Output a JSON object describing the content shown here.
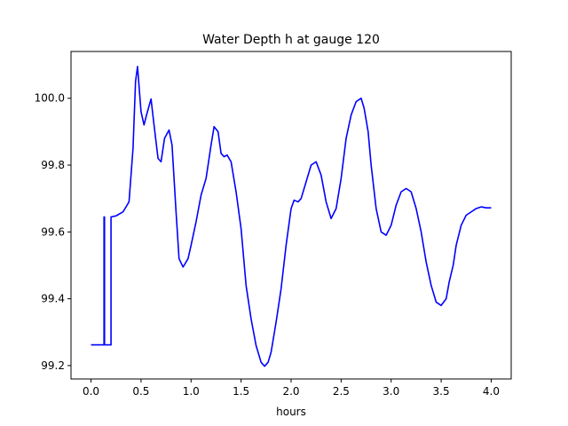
{
  "chart_data": {
    "type": "line",
    "title": "Water Depth h at gauge 120",
    "xlabel": "hours",
    "ylabel": "",
    "xlim": [
      -0.2,
      4.2
    ],
    "ylim": [
      99.16,
      100.14
    ],
    "xticks": [
      0.0,
      0.5,
      1.0,
      1.5,
      2.0,
      2.5,
      3.0,
      3.5,
      4.0
    ],
    "xtick_labels": [
      "0.0",
      "0.5",
      "1.0",
      "1.5",
      "2.0",
      "2.5",
      "3.0",
      "3.5",
      "4.0"
    ],
    "yticks": [
      99.2,
      99.4,
      99.6,
      99.8,
      100.0
    ],
    "ytick_labels": [
      "99.2",
      "99.4",
      "99.6",
      "99.8",
      "100.0"
    ],
    "grid": false,
    "legend": "none",
    "series": [
      {
        "color": "#0000ff",
        "x": [
          0.0,
          0.13,
          0.13,
          0.135,
          0.135,
          0.2,
          0.2,
          0.25,
          0.32,
          0.38,
          0.42,
          0.445,
          0.465,
          0.5,
          0.53,
          0.555,
          0.6,
          0.63,
          0.67,
          0.7,
          0.735,
          0.78,
          0.81,
          0.85,
          0.88,
          0.92,
          0.97,
          1.0,
          1.05,
          1.1,
          1.15,
          1.2,
          1.23,
          1.27,
          1.3,
          1.33,
          1.36,
          1.4,
          1.45,
          1.5,
          1.55,
          1.6,
          1.65,
          1.7,
          1.735,
          1.77,
          1.8,
          1.85,
          1.9,
          1.95,
          2.0,
          2.03,
          2.07,
          2.1,
          2.15,
          2.2,
          2.25,
          2.3,
          2.35,
          2.4,
          2.45,
          2.5,
          2.55,
          2.6,
          2.65,
          2.7,
          2.73,
          2.77,
          2.8,
          2.85,
          2.9,
          2.95,
          3.0,
          3.05,
          3.1,
          3.15,
          3.2,
          3.25,
          3.3,
          3.35,
          3.4,
          3.45,
          3.5,
          3.55,
          3.58,
          3.62,
          3.65,
          3.7,
          3.75,
          3.8,
          3.85,
          3.9,
          3.95,
          4.0
        ],
        "y": [
          99.262,
          99.262,
          99.645,
          99.645,
          99.262,
          99.262,
          99.645,
          99.648,
          99.66,
          99.69,
          99.85,
          100.05,
          100.095,
          99.96,
          99.92,
          99.95,
          99.998,
          99.92,
          99.82,
          99.81,
          99.88,
          99.905,
          99.86,
          99.66,
          99.52,
          99.495,
          99.52,
          99.56,
          99.63,
          99.71,
          99.76,
          99.86,
          99.915,
          99.9,
          99.835,
          99.825,
          99.83,
          99.81,
          99.72,
          99.61,
          99.44,
          99.34,
          99.26,
          99.21,
          99.198,
          99.21,
          99.24,
          99.33,
          99.43,
          99.56,
          99.67,
          99.695,
          99.69,
          99.7,
          99.75,
          99.8,
          99.81,
          99.77,
          99.69,
          99.64,
          99.67,
          99.76,
          99.88,
          99.95,
          99.99,
          100.0,
          99.97,
          99.9,
          99.8,
          99.67,
          99.6,
          99.59,
          99.62,
          99.68,
          99.72,
          99.73,
          99.72,
          99.67,
          99.6,
          99.51,
          99.44,
          99.39,
          99.38,
          99.4,
          99.45,
          99.5,
          99.56,
          99.62,
          99.65,
          99.66,
          99.67,
          99.675,
          99.672,
          99.672
        ]
      }
    ]
  }
}
